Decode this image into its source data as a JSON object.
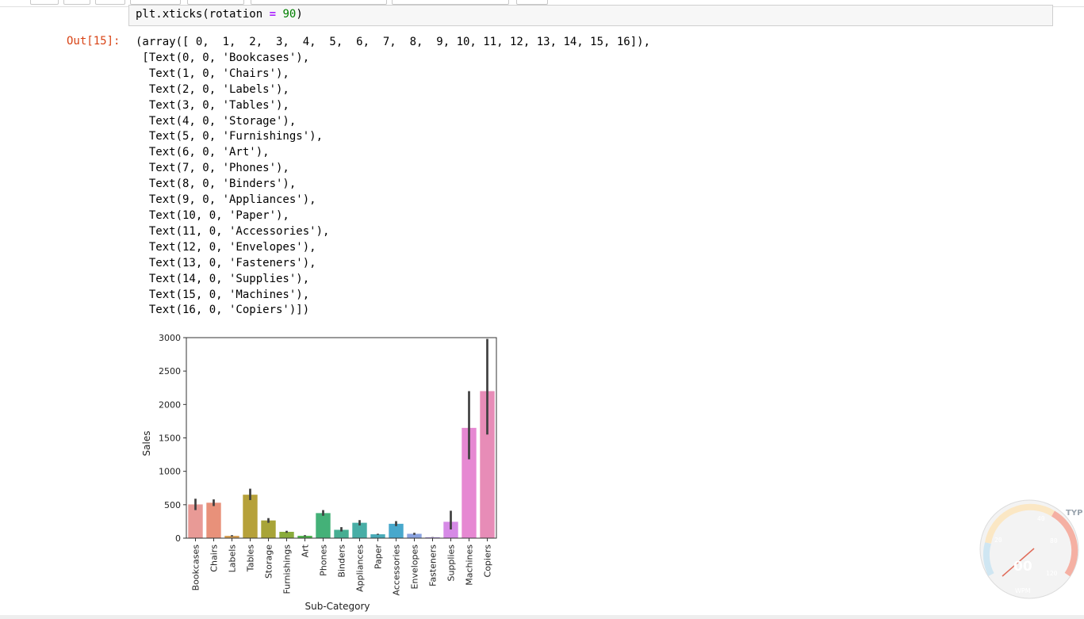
{
  "cell": {
    "code_prefix": "plt.xticks(rotation ",
    "code_op": "=",
    "code_space": " ",
    "code_num": "90",
    "code_suffix": ")"
  },
  "output": {
    "prompt": "Out[15]:",
    "lines": [
      "(array([ 0,  1,  2,  3,  4,  5,  6,  7,  8,  9, 10, 11, 12, 13, 14, 15, 16]),",
      " [Text(0, 0, 'Bookcases'),",
      "  Text(1, 0, 'Chairs'),",
      "  Text(2, 0, 'Labels'),",
      "  Text(3, 0, 'Tables'),",
      "  Text(4, 0, 'Storage'),",
      "  Text(5, 0, 'Furnishings'),",
      "  Text(6, 0, 'Art'),",
      "  Text(7, 0, 'Phones'),",
      "  Text(8, 0, 'Binders'),",
      "  Text(9, 0, 'Appliances'),",
      "  Text(10, 0, 'Paper'),",
      "  Text(11, 0, 'Accessories'),",
      "  Text(12, 0, 'Envelopes'),",
      "  Text(13, 0, 'Fasteners'),",
      "  Text(14, 0, 'Supplies'),",
      "  Text(15, 0, 'Machines'),",
      "  Text(16, 0, 'Copiers')])"
    ]
  },
  "chart_data": {
    "type": "bar",
    "xlabel": "Sub-Category",
    "ylabel": "Sales",
    "ylim": [
      0,
      3000
    ],
    "yticks": [
      0,
      500,
      1000,
      1500,
      2000,
      2500,
      3000
    ],
    "categories": [
      "Bookcases",
      "Chairs",
      "Labels",
      "Tables",
      "Storage",
      "Furnishings",
      "Art",
      "Phones",
      "Binders",
      "Appliances",
      "Paper",
      "Accessories",
      "Envelopes",
      "Fasteners",
      "Supplies",
      "Machines",
      "Copiers"
    ],
    "values": [
      505,
      530,
      35,
      650,
      265,
      95,
      35,
      375,
      125,
      230,
      58,
      215,
      65,
      14,
      245,
      1650,
      2200
    ],
    "ci_low": [
      420,
      480,
      25,
      570,
      230,
      80,
      25,
      335,
      100,
      190,
      50,
      180,
      50,
      12,
      130,
      1180,
      1550
    ],
    "ci_high": [
      590,
      580,
      45,
      740,
      300,
      110,
      45,
      420,
      165,
      270,
      66,
      255,
      80,
      16,
      410,
      2200,
      2980
    ],
    "colors": [
      "#e89a96",
      "#e8917a",
      "#d79f53",
      "#b6a13a",
      "#a8a438",
      "#8aac3c",
      "#4fb34c",
      "#44b178",
      "#46ae92",
      "#48aea6",
      "#48abb8",
      "#48a8cc",
      "#8aa3e0",
      "#b197e6",
      "#d68ae6",
      "#e688d2",
      "#e78cb7"
    ],
    "grid": false,
    "legend": "none"
  },
  "gauge": {
    "value": "00",
    "label": "WPM",
    "ticks": [
      "20",
      "40",
      "80",
      "120"
    ],
    "corner_text": "TYP"
  }
}
